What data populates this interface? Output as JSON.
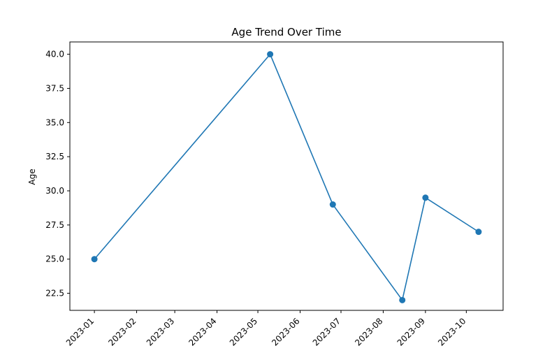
{
  "chart_data": {
    "type": "line",
    "title": "Age Trend Over Time",
    "xlabel": "",
    "ylabel": "Age",
    "x": [
      "2023-01-01",
      "2023-05-10",
      "2023-06-25",
      "2023-08-15",
      "2023-09-01",
      "2023-10-10"
    ],
    "series": [
      {
        "values": [
          25.0,
          40.0,
          29.0,
          22.0,
          29.5,
          27.0
        ],
        "color": "#1f77b4",
        "marker": "circle"
      }
    ],
    "x_ticks": [
      "2023-01",
      "2023-02",
      "2023-03",
      "2023-04",
      "2023-05",
      "2023-06",
      "2023-07",
      "2023-08",
      "2023-09",
      "2023-10"
    ],
    "x_tick_dates": [
      "2023-01-01",
      "2023-02-01",
      "2023-03-01",
      "2023-04-01",
      "2023-05-01",
      "2023-06-01",
      "2023-07-01",
      "2023-08-01",
      "2023-09-01",
      "2023-10-01"
    ],
    "x_tick_rotation": 45,
    "xlim": [
      "2022-12-14",
      "2023-10-28"
    ],
    "y_ticks": [
      22.5,
      25.0,
      27.5,
      30.0,
      32.5,
      35.0,
      37.5,
      40.0
    ],
    "ylim": [
      21.25,
      40.9
    ],
    "grid": false,
    "legend": "none"
  }
}
